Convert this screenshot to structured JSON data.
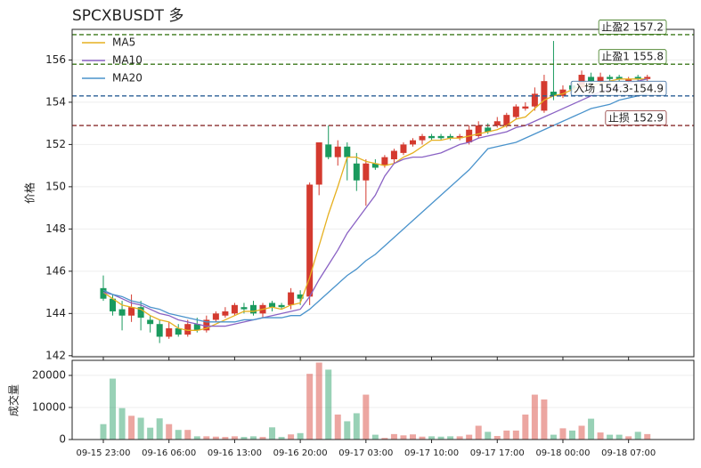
{
  "chart_data": {
    "type": "candlestick",
    "title": "SPCXBUSDT 多",
    "ylabel": "价格",
    "y2label": "成交量",
    "categories": [
      "09-15 23:00",
      null,
      null,
      null,
      null,
      null,
      null,
      "09-16 06:00",
      null,
      null,
      null,
      null,
      null,
      null,
      "09-16 13:00",
      null,
      null,
      null,
      null,
      null,
      null,
      "09-16 20:00",
      null,
      null,
      null,
      null,
      null,
      null,
      "09-17 03:00",
      null,
      null,
      null,
      null,
      null,
      null,
      "09-17 10:00",
      null,
      null,
      null,
      null,
      null,
      null,
      "09-17 17:00",
      null,
      null,
      null,
      null,
      null,
      null,
      "09-18 00:00",
      null,
      null,
      null,
      null,
      null,
      null,
      "09-18 07:00",
      null,
      null
    ],
    "open": [
      145.2,
      144.7,
      144.2,
      143.9,
      144.3,
      143.7,
      143.5,
      142.9,
      143.3,
      143.0,
      143.5,
      143.2,
      143.7,
      143.9,
      144.0,
      144.3,
      144.4,
      144.0,
      144.5,
      144.4,
      144.4,
      144.9,
      144.8,
      150.1,
      152.0,
      151.4,
      151.9,
      151.1,
      150.3,
      151.1,
      151.0,
      151.3,
      151.6,
      152.0,
      152.2,
      152.4,
      152.4,
      152.4,
      152.3,
      152.1,
      152.4,
      152.8,
      152.9,
      152.9,
      153.3,
      153.7,
      153.8,
      153.6,
      154.5,
      154.3,
      154.8,
      154.7,
      155.2,
      155.0,
      155.2,
      155.2,
      155.0,
      155.2,
      155.1
    ],
    "high": [
      145.8,
      144.9,
      144.6,
      144.9,
      144.6,
      143.9,
      143.7,
      143.6,
      143.5,
      143.7,
      143.8,
      143.9,
      144.1,
      144.3,
      144.5,
      144.5,
      144.6,
      144.5,
      144.6,
      144.5,
      145.2,
      145.1,
      150.2,
      152.1,
      152.9,
      152.2,
      152.1,
      151.6,
      151.3,
      151.3,
      151.5,
      151.8,
      152.1,
      152.3,
      152.5,
      152.5,
      152.5,
      152.5,
      152.5,
      152.9,
      153.1,
      153.0,
      153.3,
      153.5,
      153.9,
      154.0,
      154.7,
      155.3,
      156.9,
      154.8,
      155.0,
      155.5,
      155.4,
      155.4,
      155.3,
      155.3,
      155.2,
      155.3,
      155.3
    ],
    "low": [
      144.6,
      143.9,
      143.2,
      143.6,
      143.2,
      143.1,
      142.6,
      142.8,
      142.9,
      142.9,
      143.1,
      143.1,
      143.6,
      143.8,
      143.9,
      144.0,
      143.9,
      143.8,
      144.1,
      144.2,
      144.2,
      144.4,
      144.4,
      149.6,
      151.3,
      151.0,
      150.3,
      149.8,
      149.1,
      150.8,
      150.9,
      151.1,
      151.5,
      151.9,
      152.0,
      152.2,
      152.2,
      152.2,
      152.2,
      152.0,
      152.3,
      152.5,
      152.8,
      152.8,
      153.2,
      153.6,
      153.6,
      153.5,
      154.1,
      154.2,
      154.5,
      154.5,
      154.8,
      154.9,
      155.0,
      155.0,
      154.9,
      155.0,
      155.0
    ],
    "close": [
      144.7,
      144.1,
      143.9,
      144.3,
      143.8,
      143.5,
      142.9,
      143.3,
      143.0,
      143.5,
      143.2,
      143.7,
      144.0,
      144.1,
      144.4,
      144.2,
      144.0,
      144.4,
      144.3,
      144.3,
      145.0,
      144.7,
      150.1,
      152.1,
      151.4,
      151.9,
      151.4,
      150.3,
      151.1,
      150.9,
      151.4,
      151.7,
      152.0,
      152.2,
      152.4,
      152.3,
      152.3,
      152.3,
      152.4,
      152.7,
      152.9,
      152.6,
      153.1,
      153.4,
      153.8,
      153.8,
      154.4,
      155.0,
      154.3,
      154.6,
      154.6,
      155.3,
      155.0,
      155.2,
      155.1,
      155.1,
      155.1,
      155.1,
      155.2
    ],
    "volume": [
      4800,
      19000,
      9800,
      7400,
      6800,
      3700,
      6600,
      4800,
      3000,
      3000,
      1000,
      1000,
      900,
      800,
      1000,
      800,
      1000,
      800,
      3800,
      800,
      1600,
      2000,
      20500,
      24000,
      21800,
      7800,
      5700,
      8200,
      14000,
      1500,
      500,
      1700,
      1300,
      1600,
      900,
      1000,
      900,
      1000,
      1000,
      1500,
      4300,
      2400,
      1100,
      2800,
      2800,
      7800,
      14000,
      12500,
      1500,
      3500,
      2800,
      4300,
      6500,
      2200,
      1500,
      1500,
      1000,
      2400,
      1700
    ],
    "series": [
      {
        "name": "MA5",
        "color": "#e6b020",
        "values": [
          145.0,
          144.7,
          144.4,
          144.3,
          144.2,
          143.9,
          143.7,
          143.6,
          143.3,
          143.2,
          143.2,
          143.3,
          143.5,
          143.7,
          143.9,
          144.1,
          144.1,
          144.2,
          144.3,
          144.2,
          144.4,
          144.5,
          145.7,
          147.2,
          148.7,
          150.0,
          151.4,
          151.4,
          151.2,
          151.1,
          151.0,
          151.1,
          151.4,
          151.6,
          151.9,
          152.2,
          152.2,
          152.3,
          152.3,
          152.4,
          152.5,
          152.6,
          152.7,
          152.9,
          153.2,
          153.3,
          153.7,
          154.1,
          154.3,
          154.4,
          154.6,
          154.8,
          154.8,
          154.9,
          155.0,
          155.1,
          155.1,
          155.1,
          155.1
        ]
      },
      {
        "name": "MA10",
        "color": "#8a62c4",
        "values": [
          145.0,
          144.9,
          144.7,
          144.5,
          144.4,
          144.2,
          144.0,
          143.9,
          143.7,
          143.6,
          143.5,
          143.4,
          143.4,
          143.4,
          143.5,
          143.6,
          143.7,
          143.8,
          143.9,
          144.0,
          144.1,
          144.2,
          144.8,
          145.6,
          146.3,
          147.0,
          147.8,
          148.4,
          149.0,
          149.6,
          150.5,
          151.1,
          151.3,
          151.4,
          151.4,
          151.5,
          151.6,
          151.8,
          152.0,
          152.1,
          152.3,
          152.4,
          152.5,
          152.6,
          152.8,
          152.9,
          153.1,
          153.3,
          153.5,
          153.7,
          153.9,
          154.1,
          154.3,
          154.5,
          154.6,
          154.7,
          154.9,
          155.0,
          155.1
        ]
      },
      {
        "name": "MA20",
        "color": "#4a93cc",
        "values": [
          145.1,
          144.9,
          144.8,
          144.6,
          144.5,
          144.3,
          144.2,
          144.0,
          143.9,
          143.8,
          143.7,
          143.6,
          143.6,
          143.6,
          143.6,
          143.7,
          143.7,
          143.8,
          143.8,
          143.8,
          143.9,
          143.9,
          144.2,
          144.6,
          145.0,
          145.4,
          145.8,
          146.1,
          146.5,
          146.8,
          147.2,
          147.6,
          148.0,
          148.4,
          148.8,
          149.2,
          149.6,
          150.0,
          150.4,
          150.8,
          151.3,
          151.8,
          151.9,
          152.0,
          152.1,
          152.3,
          152.5,
          152.7,
          152.9,
          153.1,
          153.3,
          153.5,
          153.7,
          153.8,
          153.9,
          154.1,
          154.2,
          154.3,
          154.4
        ]
      }
    ],
    "up_color": "#d43a2f",
    "down_color": "#1a9a5e",
    "levels": [
      {
        "label": "止盈2 157.2",
        "value": 157.2,
        "color": "#3d7a1c"
      },
      {
        "label": "止盈1 155.8",
        "value": 155.8,
        "color": "#3d7a1c"
      },
      {
        "label": "入场 154.3-154.9",
        "value": 154.3,
        "color": "#2b5f96"
      },
      {
        "label": "止损 152.9",
        "value": 152.9,
        "color": "#8a2f2f"
      }
    ],
    "ylim": [
      141.95,
      157.45
    ],
    "yticks": [
      142,
      144,
      146,
      148,
      150,
      152,
      154,
      156
    ],
    "y2lim": [
      0,
      24700
    ],
    "y2ticks": [
      0,
      10000,
      20000
    ],
    "grid": true,
    "legend": "upper left"
  }
}
